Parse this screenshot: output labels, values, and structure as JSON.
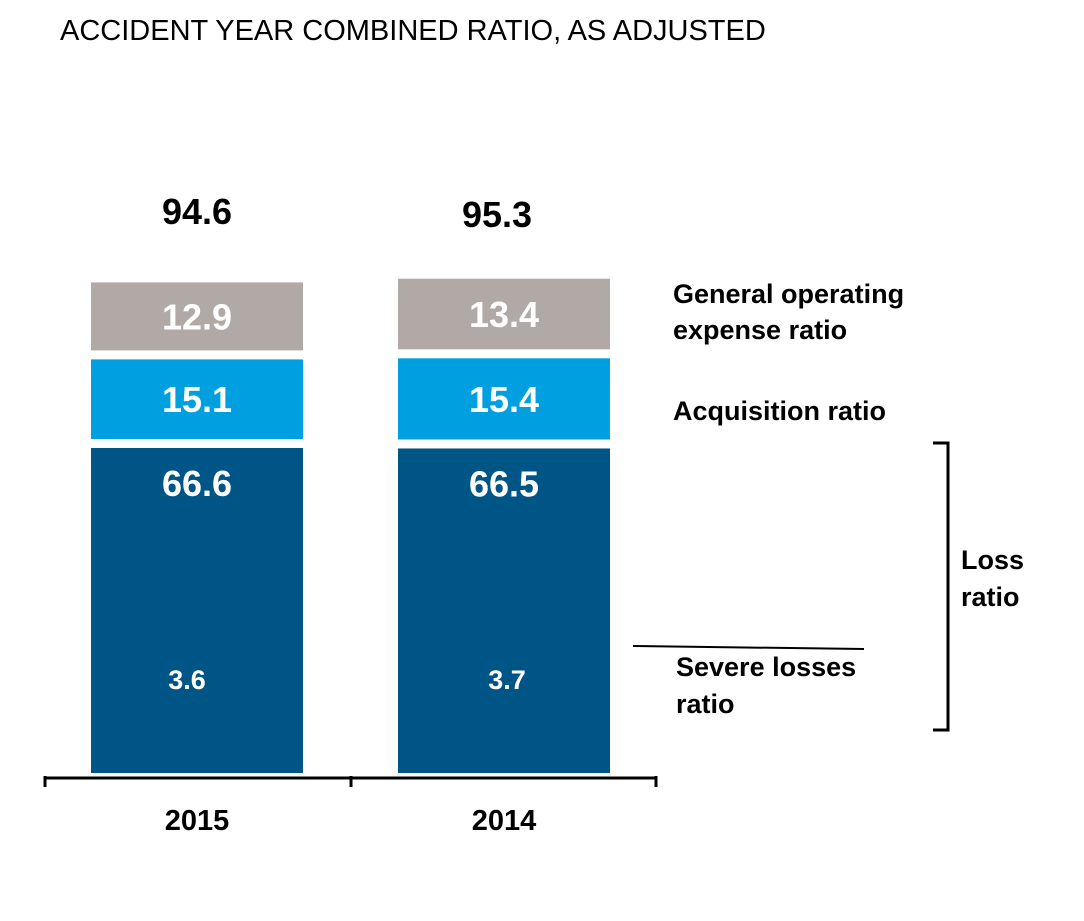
{
  "chart_data": {
    "type": "bar",
    "stacked": true,
    "title": "ACCIDENT YEAR COMBINED RATIO, AS ADJUSTED",
    "categories": [
      "2015",
      "2014"
    ],
    "totals": [
      "94.6",
      "95.3"
    ],
    "series": [
      {
        "name": "Loss ratio",
        "values": [
          66.6,
          66.5
        ],
        "color": "#005587"
      },
      {
        "name": "Acquisition ratio",
        "values": [
          15.1,
          15.4
        ],
        "color": "#00a0e0"
      },
      {
        "name": "General operating expense ratio",
        "values": [
          12.9,
          13.4
        ],
        "color": "#b1a9a6"
      }
    ],
    "severe_losses": {
      "name": "Severe losses ratio",
      "values": [
        3.6,
        3.7
      ]
    },
    "legend_labels": {
      "general_operating_line1": "General operating",
      "general_operating_line2": "expense ratio",
      "acquisition": "Acquisition ratio",
      "loss_line1": "Loss",
      "loss_line2": "ratio",
      "severe_line1": "Severe losses",
      "severe_line2": "ratio"
    },
    "legend_placement": "right",
    "grid": false
  }
}
